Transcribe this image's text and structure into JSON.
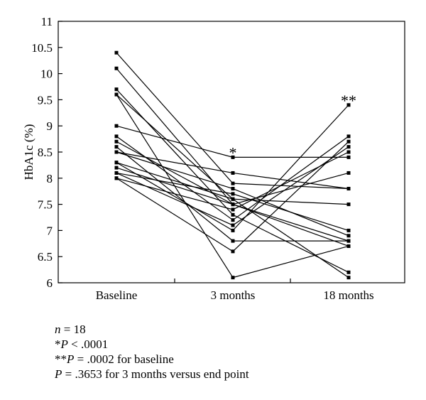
{
  "chart_data": {
    "type": "line",
    "categories": [
      "Baseline",
      "3 months",
      "18 months"
    ],
    "ylabel": "HbA1c (%)",
    "ylim": [
      6,
      11
    ],
    "yticks": [
      "6",
      "6.5",
      "7",
      "7.5",
      "8",
      "8.5",
      "9",
      "9.5",
      "10",
      "10.5",
      "11"
    ],
    "grid": false,
    "legend": "none",
    "series": [
      {
        "values": [
          10.4,
          7.9,
          7.8
        ]
      },
      {
        "values": [
          10.1,
          7.5,
          6.7
        ]
      },
      {
        "values": [
          9.7,
          7.3,
          6.2
        ]
      },
      {
        "values": [
          9.6,
          6.1,
          6.7
        ]
      },
      {
        "values": [
          9.6,
          7.6,
          6.1
        ]
      },
      {
        "values": [
          9.0,
          8.4,
          8.4
        ]
      },
      {
        "values": [
          8.8,
          7.2,
          8.8
        ]
      },
      {
        "values": [
          8.7,
          7.5,
          6.8
        ]
      },
      {
        "values": [
          8.6,
          6.8,
          6.8
        ]
      },
      {
        "values": [
          8.5,
          8.1,
          7.8
        ]
      },
      {
        "values": [
          8.5,
          7.8,
          6.9
        ]
      },
      {
        "values": [
          8.3,
          7.6,
          7.5
        ]
      },
      {
        "values": [
          8.3,
          7.0,
          9.4
        ]
      },
      {
        "values": [
          8.2,
          7.5,
          8.1
        ]
      },
      {
        "values": [
          8.1,
          7.1,
          8.6
        ]
      },
      {
        "values": [
          8.1,
          7.7,
          7.0
        ]
      },
      {
        "values": [
          8.0,
          6.6,
          8.7
        ]
      },
      {
        "values": [
          8.0,
          7.4,
          8.5
        ]
      }
    ],
    "annotations": [
      {
        "category": "3 months",
        "y": 8.4,
        "text": "*"
      },
      {
        "category": "18 months",
        "y": 9.4,
        "text": "**"
      }
    ]
  },
  "notes": {
    "n_sym": "n",
    "n_rest": " = 18",
    "p1_star": "*",
    "p1_sym": "P",
    "p1_rest": " < .0001",
    "p2_star": "**",
    "p2_sym": "P",
    "p2_rest": " = .0002 for baseline",
    "p3_sym": "P",
    "p3_rest": " = .3653 for 3 months versus end point"
  }
}
